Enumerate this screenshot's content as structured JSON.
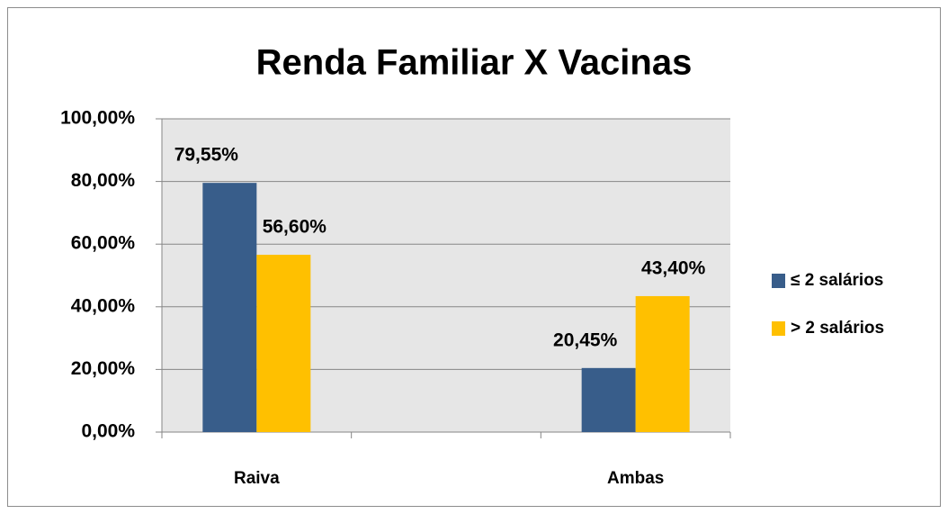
{
  "chart_data": {
    "type": "bar",
    "title": "Renda Familiar X  Vacinas",
    "categories": [
      "Raiva",
      null,
      "Ambas"
    ],
    "series": [
      {
        "name": "≤ 2 salários",
        "color": "#385d8a",
        "values": [
          79.55,
          null,
          20.45
        ],
        "value_labels": [
          "79,55%",
          null,
          "20,45%"
        ]
      },
      {
        "name": "> 2  salários",
        "color": "#ffc000",
        "values": [
          56.6,
          null,
          43.4
        ],
        "value_labels": [
          "56,60%",
          null,
          "43,40%"
        ]
      }
    ],
    "ylim": [
      0,
      100
    ],
    "yticks": [
      {
        "value": 0,
        "label": "0,00%"
      },
      {
        "value": 20,
        "label": "20,00%"
      },
      {
        "value": 40,
        "label": "40,00%"
      },
      {
        "value": 60,
        "label": "60,00%"
      },
      {
        "value": 80,
        "label": "80,00%"
      },
      {
        "value": 100,
        "label": "100,00%"
      }
    ],
    "grid": true,
    "legend": "right"
  }
}
